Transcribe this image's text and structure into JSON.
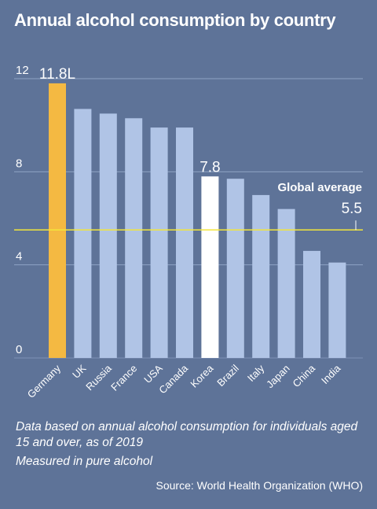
{
  "title": "Annual alcohol consumption by country",
  "notes": {
    "line1": "Data based on annual alcohol consumption for individuals aged 15 and over, as of 2019",
    "line2": "Measured in pure alcohol"
  },
  "source": "Source: World Health Organization (WHO)",
  "chart_data": {
    "type": "bar",
    "title": "Annual alcohol consumption by country",
    "categories": [
      "Germany",
      "UK",
      "Russia",
      "France",
      "USA",
      "Canada",
      "Korea",
      "Brazil",
      "Italy",
      "Japan",
      "China",
      "India"
    ],
    "values": [
      11.8,
      10.7,
      10.5,
      10.3,
      9.9,
      9.9,
      7.8,
      7.7,
      7.0,
      6.4,
      4.6,
      4.1
    ],
    "y_ticks": [
      "0",
      "4",
      "8",
      "12"
    ],
    "ylim": [
      0,
      12
    ],
    "grid": true,
    "data_labels": [
      {
        "category": "Germany",
        "text": "11.8L"
      },
      {
        "category": "Korea",
        "text": "7.8"
      }
    ],
    "reference_line": {
      "label": "Global average",
      "value": 5.5,
      "value_text": "5.5"
    },
    "colors": {
      "background": "#5e7398",
      "bar": "#b0c4e6",
      "highlight_max": "#f4b942",
      "highlight_korea": "#ffffff",
      "average_line": "#f3e63a",
      "grid": "#8fa3c4"
    }
  }
}
